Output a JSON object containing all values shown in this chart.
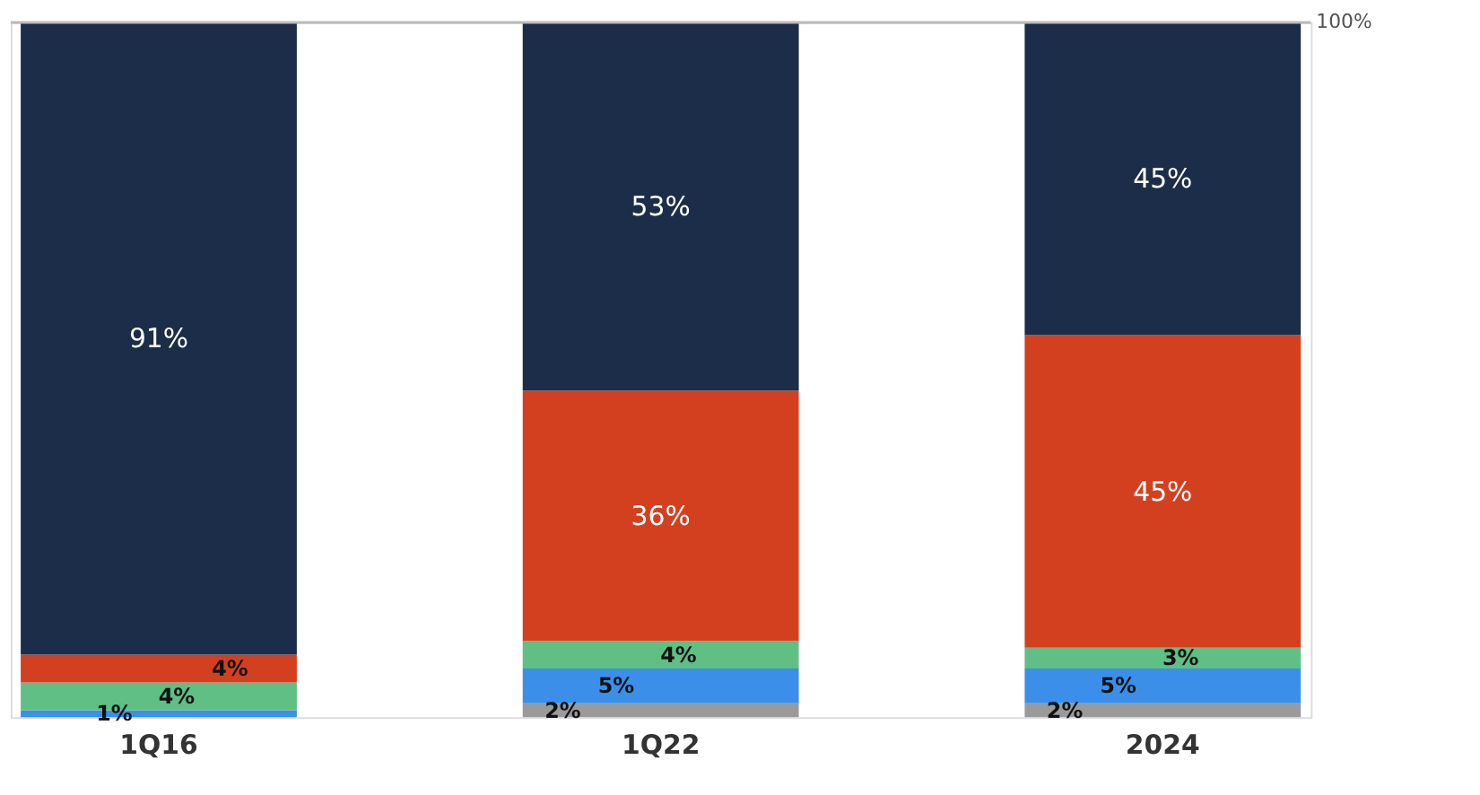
{
  "chart_data": {
    "type": "bar",
    "stacked": true,
    "categories": [
      "1Q16",
      "1Q22",
      "2024"
    ],
    "series": [
      {
        "color": "#9a9a9a",
        "values": [
          null,
          2,
          2
        ],
        "value_labels": [
          null,
          "2%",
          "2%"
        ]
      },
      {
        "color": "#3b8fe8",
        "values": [
          1,
          5,
          5
        ],
        "value_labels": [
          "1%",
          "5%",
          "5%"
        ]
      },
      {
        "color": "#5fbf85",
        "values": [
          4,
          4,
          3
        ],
        "value_labels": [
          "4%",
          "4%",
          "3%"
        ]
      },
      {
        "color": "#d3401f",
        "values": [
          4,
          36,
          45
        ],
        "value_labels": [
          "4%",
          "36%",
          "45%"
        ]
      },
      {
        "color": "#1b2d48",
        "values": [
          91,
          53,
          45
        ],
        "value_labels": [
          "91%",
          "53%",
          "45%"
        ]
      }
    ],
    "ylim": [
      0,
      100
    ],
    "tick_labels": "x",
    "ref_lines": [
      {
        "axis": "y",
        "value": 100,
        "label": "100%",
        "color": "#bbbbbb"
      }
    ]
  }
}
